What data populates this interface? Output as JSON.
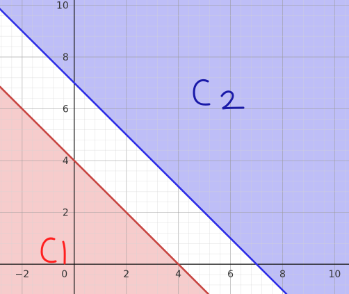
{
  "chart_data": {
    "type": "line",
    "xlim": [
      -2.85,
      10.55
    ],
    "ylim": [
      -1.15,
      10.2
    ],
    "grid": true,
    "major_grid_step": 2,
    "minor_grid_step": 0.4,
    "x_ticks": [
      -2,
      0,
      2,
      4,
      6,
      8,
      10
    ],
    "y_ticks": [
      2,
      4,
      6,
      8,
      10
    ],
    "x_tick_labels": [
      "−2",
      "0",
      "2",
      "4",
      "6",
      "8",
      "10"
    ],
    "y_tick_labels": [
      "2",
      "4",
      "6",
      "8",
      "10"
    ],
    "series": [
      {
        "line": "x + y = 4",
        "points": [
          [
            -2.85,
            6.85
          ],
          [
            5.15,
            -1.15
          ]
        ],
        "shade": "below",
        "color": "#c74440",
        "fill": "#f4c3c3",
        "label": "C1"
      },
      {
        "line": "x + y = 7",
        "points": [
          [
            -3.2,
            10.2
          ],
          [
            8.15,
            -1.15
          ]
        ],
        "shade": "above",
        "color": "#2d2de6",
        "fill": "#b3b3f6",
        "label": "C2"
      }
    ]
  }
}
